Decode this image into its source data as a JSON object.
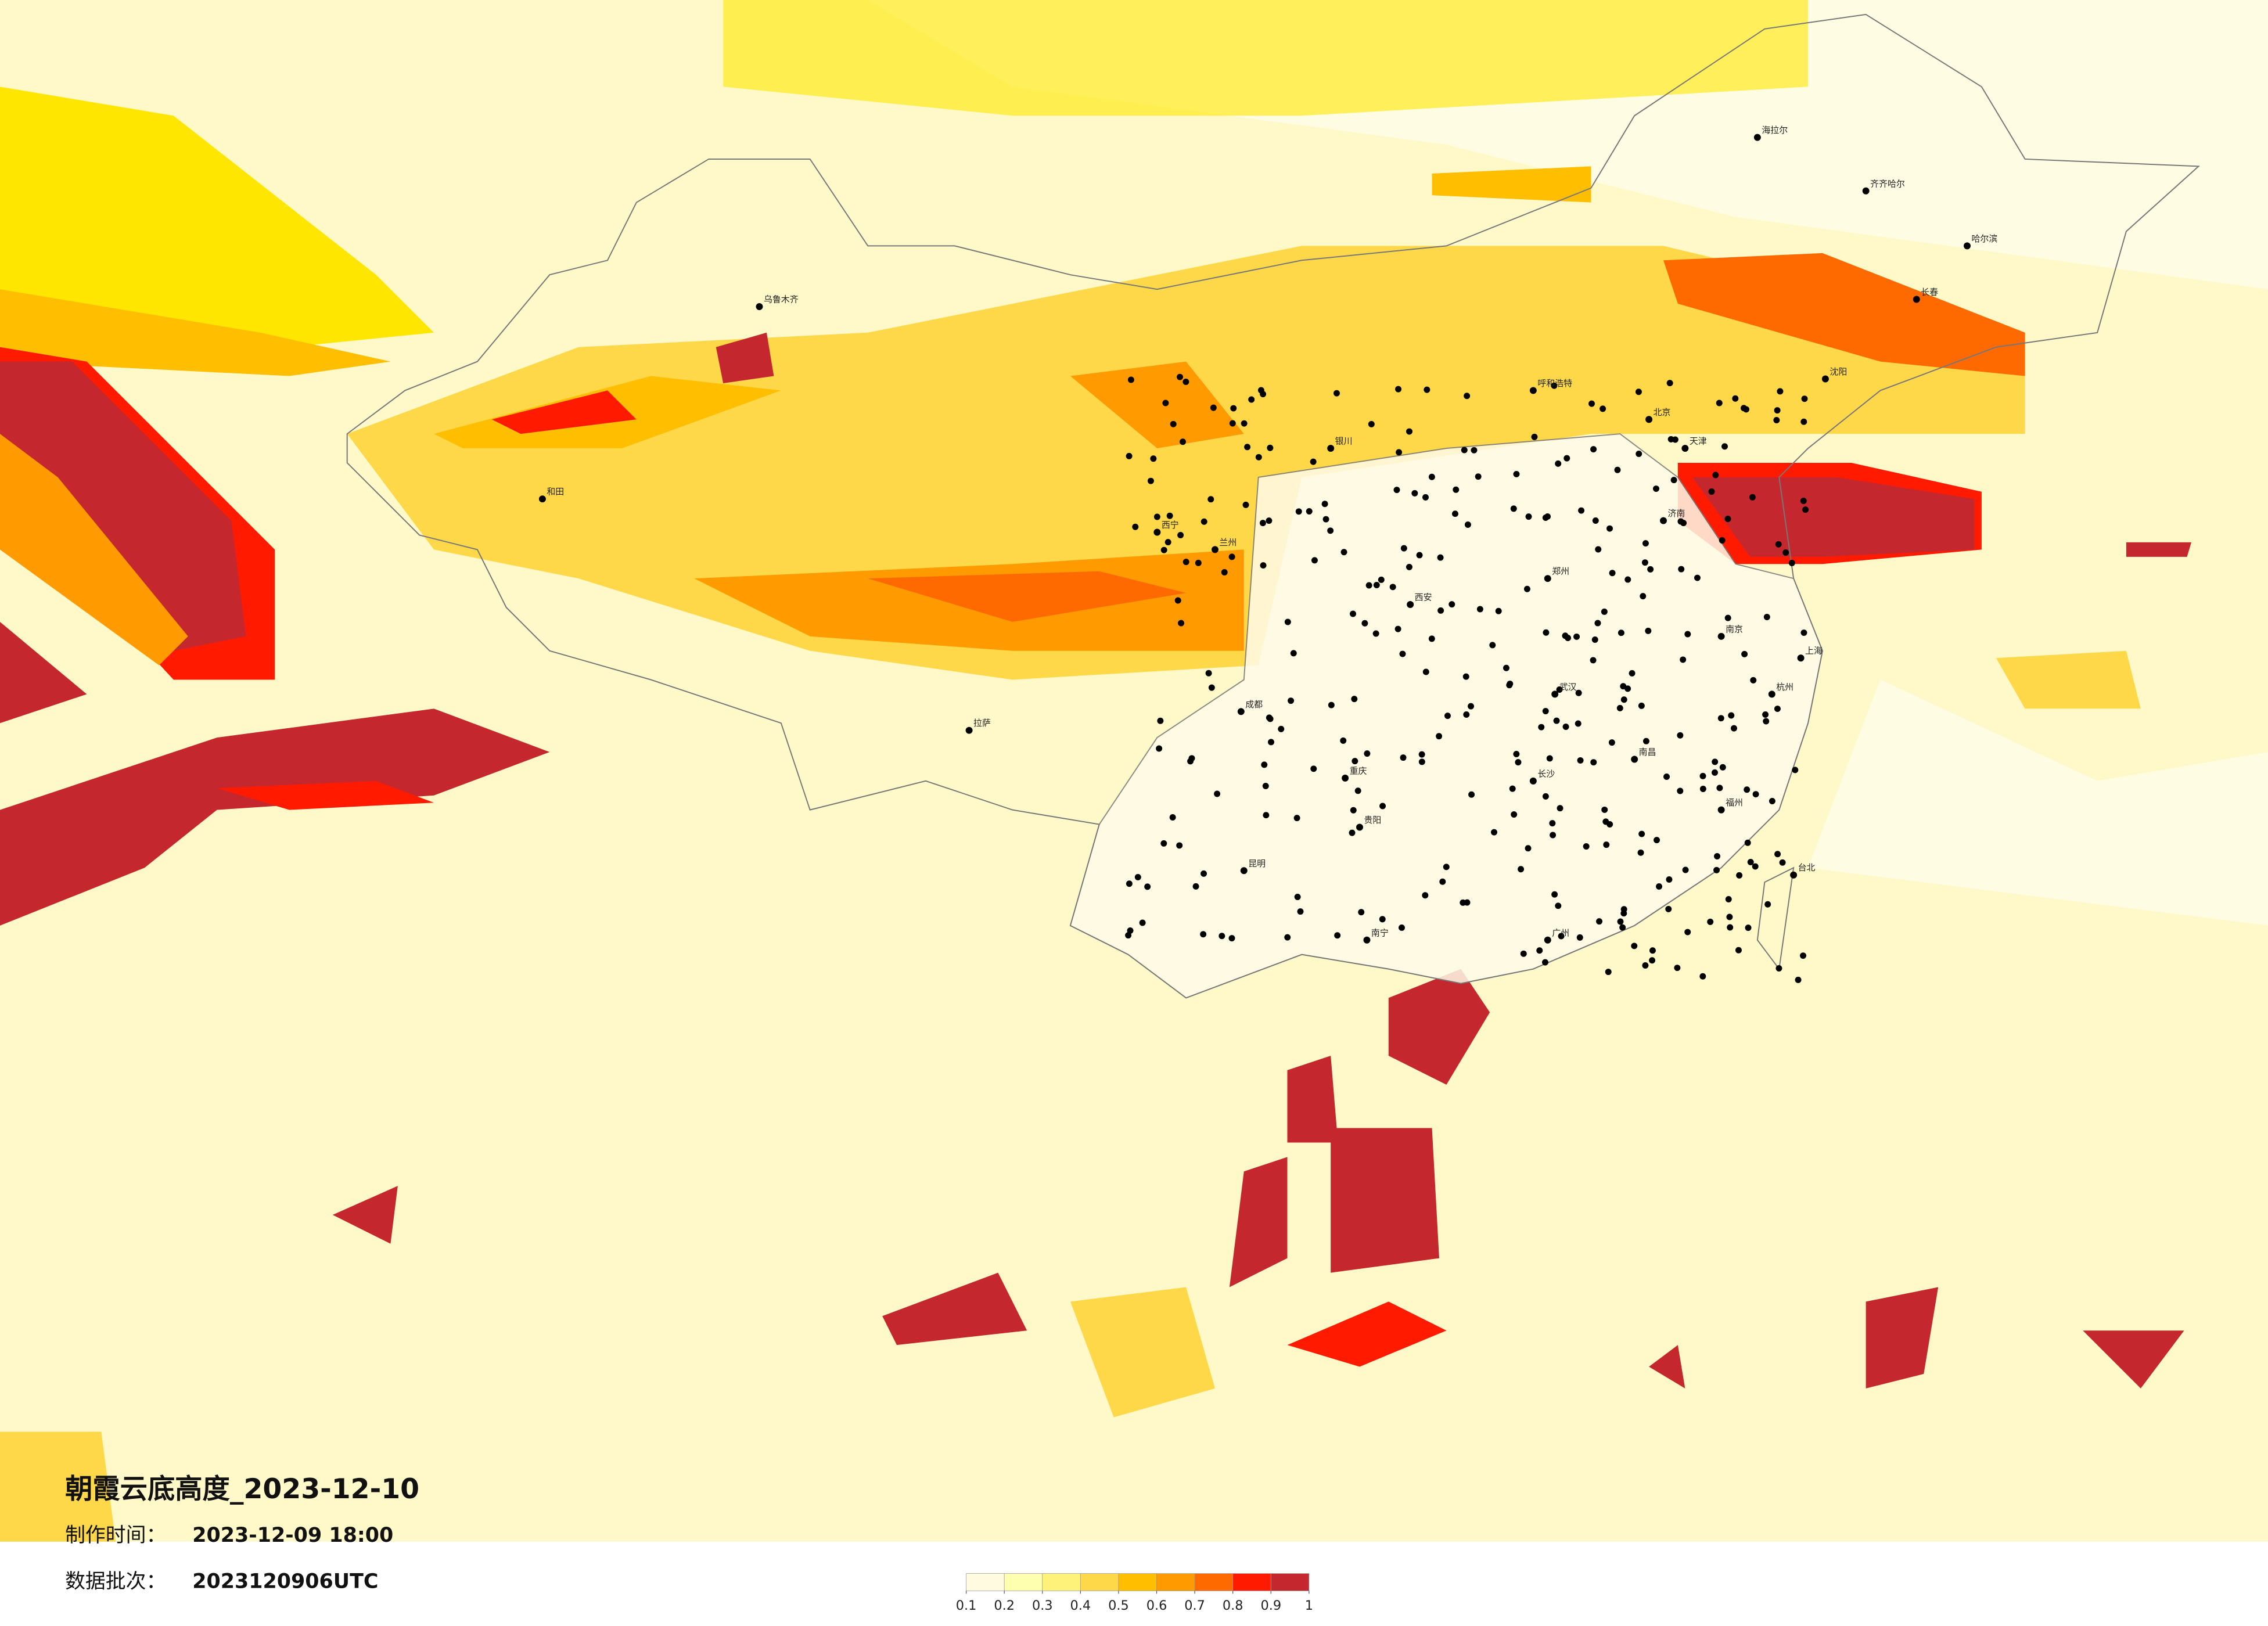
{
  "header": {
    "title": "朝霞云底高度_2023-12-10",
    "made_label": "制作时间：",
    "made_time": "2023-12-09 18:00",
    "batch_label": "数据批次：",
    "batch": "2023120906UTC"
  },
  "colorbar": {
    "ticks": [
      0.1,
      0.2,
      0.3,
      0.4,
      0.5,
      0.6,
      0.7,
      0.8,
      0.9,
      1
    ],
    "colors": [
      "#fffbe0",
      "#ffffb0",
      "#fff27a",
      "#ffd84a",
      "#ffbe00",
      "#ff9a00",
      "#ff6a00",
      "#ff1a00",
      "#c4282e"
    ]
  },
  "cities": [
    "海拉尔",
    "齐齐哈尔",
    "哈尔滨",
    "长春",
    "沈阳",
    "北京",
    "天津",
    "呼和浩特",
    "济南",
    "郑州",
    "西安",
    "银川",
    "兰州",
    "西宁",
    "乌鲁木齐",
    "和田",
    "拉萨",
    "成都",
    "重庆",
    "贵阳",
    "昆明",
    "南宁",
    "广州",
    "福州",
    "台北",
    "南京",
    "上海",
    "杭州",
    "武汉",
    "长沙",
    "南昌"
  ]
}
